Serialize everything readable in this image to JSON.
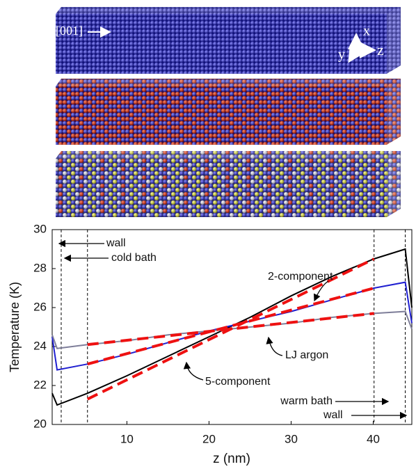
{
  "structure": {
    "direction": "[001]",
    "axes": [
      "x",
      "y",
      "z"
    ]
  },
  "chart_data": {
    "type": "line",
    "x_label": "z (nm)",
    "y_label": "Temperature (K)",
    "xlim": [
      0.9,
      44.7
    ],
    "xticks": [
      10,
      20,
      30,
      40
    ],
    "ylim": [
      20,
      30
    ],
    "yticks": [
      20,
      22,
      24,
      26,
      28,
      30
    ],
    "x": [
      0.9,
      1.5,
      5.2,
      10,
      15,
      20,
      25,
      30,
      35,
      40.1,
      43.9,
      44.7
    ],
    "series": [
      {
        "color": "#000000",
        "values": [
          21.6,
          21.0,
          21.6,
          22.5,
          23.5,
          24.5,
          25.5,
          26.6,
          27.6,
          28.5,
          29.0,
          26.0
        ]
      },
      {
        "color": "#1f1fd0",
        "values": [
          24.5,
          22.8,
          23.1,
          23.6,
          24.2,
          24.8,
          25.3,
          25.8,
          26.4,
          27.0,
          27.3,
          25.2
        ]
      },
      {
        "color": "#7f7f9a",
        "values": [
          24.6,
          23.9,
          24.1,
          24.3,
          24.6,
          24.8,
          25.0,
          25.2,
          25.5,
          25.7,
          25.8,
          24.9
        ]
      }
    ],
    "fits": [
      {
        "color": "#ee1111",
        "x": [
          5.2,
          40.1
        ],
        "values": [
          21.3,
          28.5
        ]
      },
      {
        "color": "#ee1111",
        "x": [
          5.2,
          40.1
        ],
        "values": [
          23.1,
          27.0
        ]
      },
      {
        "color": "#ee1111",
        "x": [
          5.2,
          40.1
        ],
        "values": [
          24.1,
          25.7
        ]
      }
    ],
    "vlines": [
      2,
      5.2,
      40.1,
      43.9
    ],
    "annotations": [
      "wall",
      "cold bath",
      "2-component",
      "LJ argon",
      "5-component",
      "warm bath",
      "wall"
    ]
  }
}
